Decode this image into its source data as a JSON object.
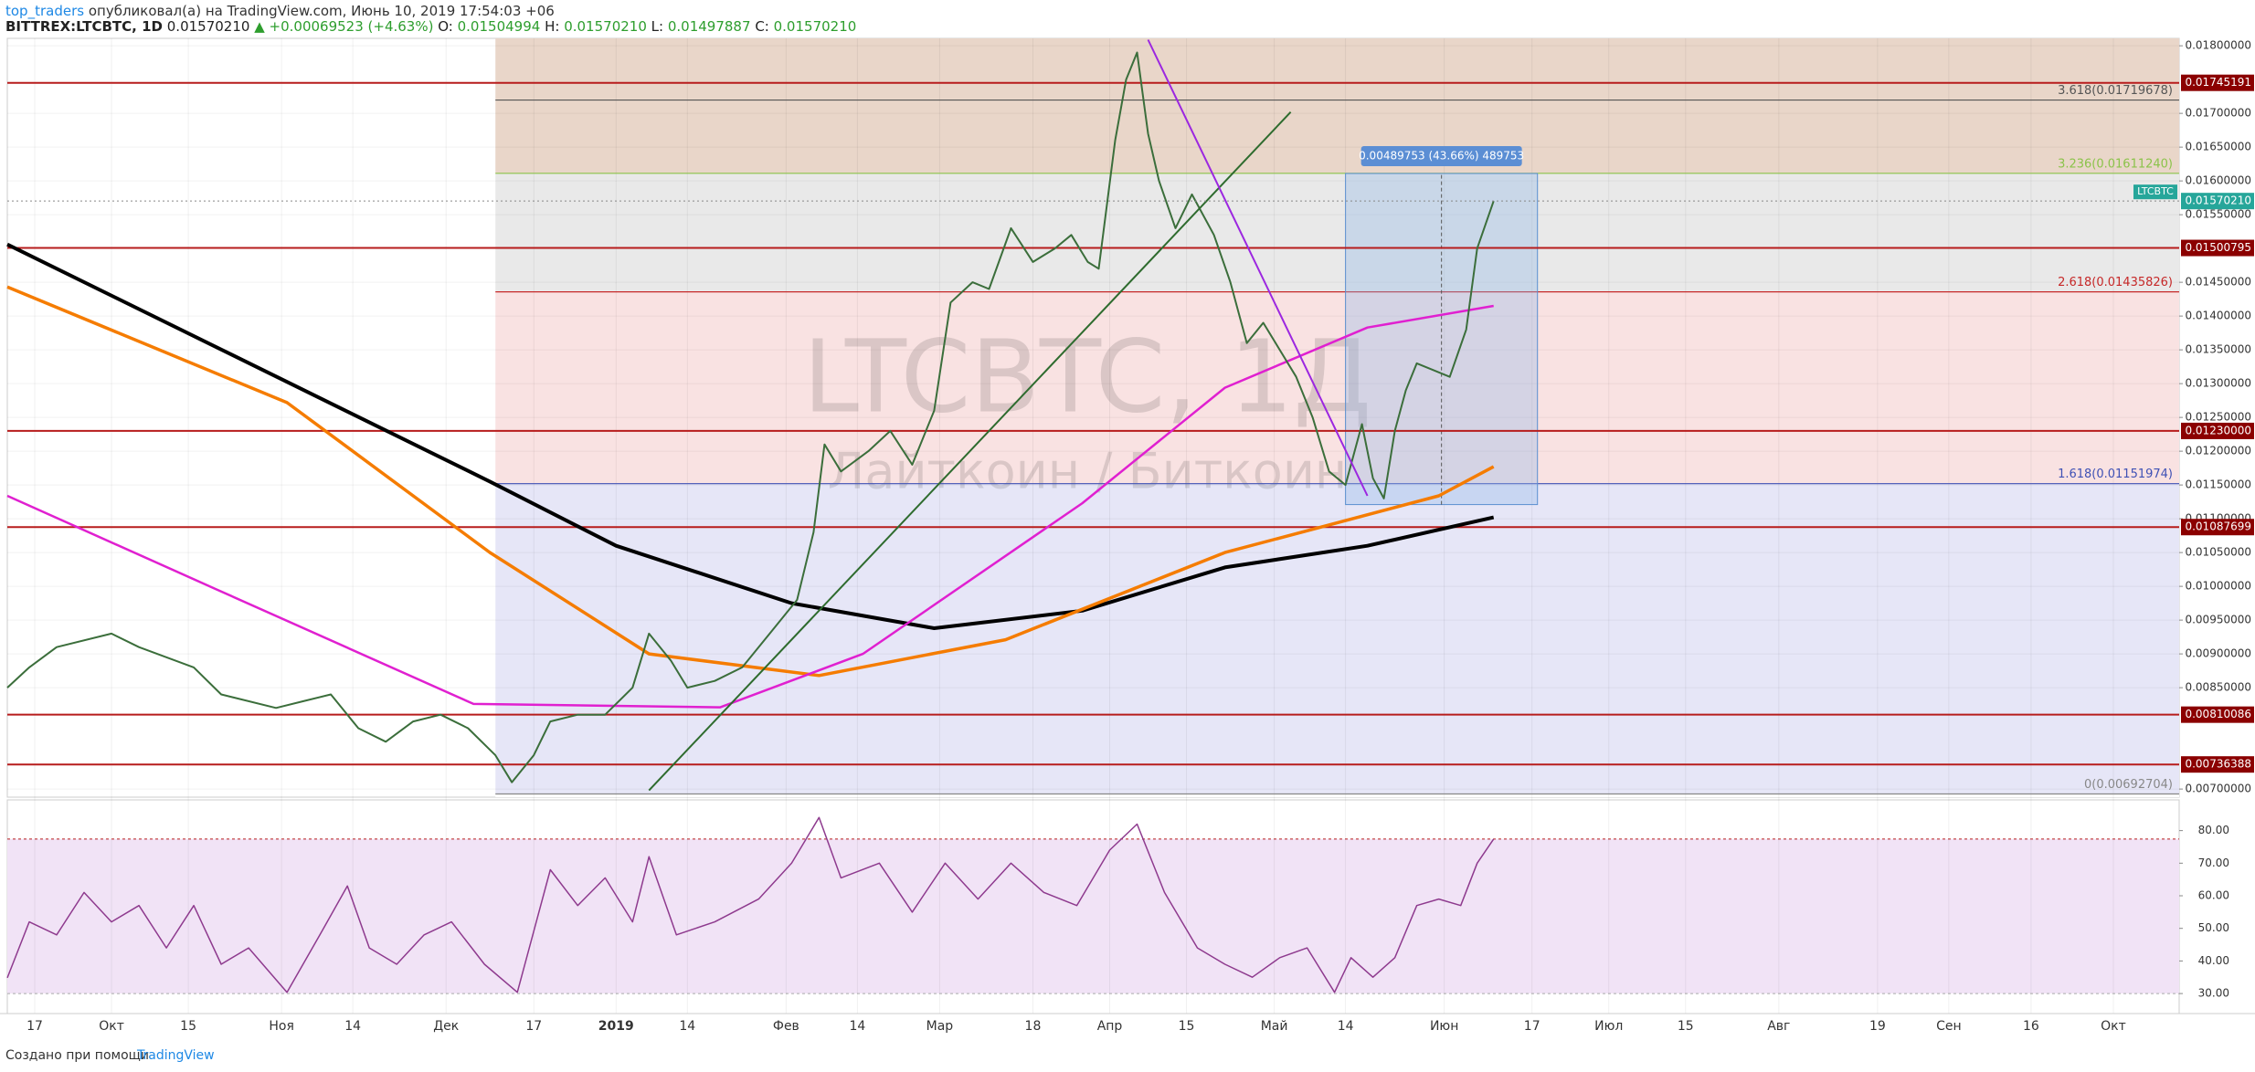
{
  "header": {
    "user": "top_traders",
    "published": "опубликовал(а) на TradingView.com, Июнь 10, 2019 17:54:03 +06",
    "symbol": "BITTREX:LTCBTC, 1D",
    "price": "0.01570210",
    "change": "▲ +0.00069523 (+4.63%)",
    "ohlc": [
      [
        "O:",
        "0.01504994"
      ],
      [
        "H:",
        "0.01570210"
      ],
      [
        "L:",
        "0.01497887"
      ],
      [
        "C:",
        "0.01570210"
      ]
    ]
  },
  "footer": {
    "text": "Создано при помощи",
    "brand": "TradingView"
  },
  "chart_data": [
    {
      "type": "line",
      "watermark": "LTCBTC, 1Д",
      "watermark_sub": "Лайткоин / Биткоин",
      "xlim": [
        11,
        407
      ],
      "ylim": [
        0.00688,
        0.01811
      ],
      "xticks": [
        {
          "value": 16,
          "label": "17"
        },
        {
          "value": 30,
          "label": "Окт"
        },
        {
          "value": 44,
          "label": "15"
        },
        {
          "value": 61,
          "label": "Ноя"
        },
        {
          "value": 74,
          "label": "14"
        },
        {
          "value": 91,
          "label": "Дек"
        },
        {
          "value": 107,
          "label": "17"
        },
        {
          "value": 122,
          "label": "2019"
        },
        {
          "value": 135,
          "label": "14"
        },
        {
          "value": 153,
          "label": "Фев"
        },
        {
          "value": 166,
          "label": "14"
        },
        {
          "value": 181,
          "label": "Мар"
        },
        {
          "value": 198,
          "label": "18"
        },
        {
          "value": 212,
          "label": "Апр"
        },
        {
          "value": 226,
          "label": "15"
        },
        {
          "value": 242,
          "label": "Май"
        },
        {
          "value": 255,
          "label": "14"
        },
        {
          "value": 273,
          "label": "Июн"
        },
        {
          "value": 289,
          "label": "17"
        },
        {
          "value": 303,
          "label": "Июл"
        },
        {
          "value": 317,
          "label": "15"
        },
        {
          "value": 334,
          "label": "Авг"
        },
        {
          "value": 352,
          "label": "19"
        },
        {
          "value": 365,
          "label": "Сен"
        },
        {
          "value": 380,
          "label": "16"
        },
        {
          "value": 395,
          "label": "Окт"
        }
      ],
      "yticks": [
        {
          "value": 0.018,
          "label": "0.01800000"
        },
        {
          "value": 0.017,
          "label": "0.01700000"
        },
        {
          "value": 0.0165,
          "label": "0.01650000"
        },
        {
          "value": 0.016,
          "label": "0.01600000"
        },
        {
          "value": 0.0155,
          "label": "0.01550000"
        },
        {
          "value": 0.0145,
          "label": "0.01450000"
        },
        {
          "value": 0.014,
          "label": "0.01400000"
        },
        {
          "value": 0.0135,
          "label": "0.01350000"
        },
        {
          "value": 0.013,
          "label": "0.01300000"
        },
        {
          "value": 0.0125,
          "label": "0.01250000"
        },
        {
          "value": 0.012,
          "label": "0.01200000"
        },
        {
          "value": 0.0115,
          "label": "0.01150000"
        },
        {
          "value": 0.011,
          "label": "0.01100000"
        },
        {
          "value": 0.0105,
          "label": "0.01050000"
        },
        {
          "value": 0.01,
          "label": "0.01000000"
        },
        {
          "value": 0.0095,
          "label": "0.00950000"
        },
        {
          "value": 0.009,
          "label": "0.00900000"
        },
        {
          "value": 0.0085,
          "label": "0.00850000"
        },
        {
          "value": 0.007,
          "label": "0.00700000"
        }
      ],
      "series": [
        {
          "color": "#000000",
          "width": 4,
          "x": [
            11,
            99,
            122,
            154,
            180,
            207,
            233,
            259,
            282
          ],
          "values": [
            0.01506,
            0.01155,
            0.0106,
            0.00975,
            0.00938,
            0.00964,
            0.01028,
            0.0106,
            0.01102
          ]
        },
        {
          "color": "#f57c00",
          "width": 3.5,
          "x": [
            11,
            62,
            99,
            128,
            159,
            193,
            233,
            272,
            282
          ],
          "values": [
            0.01443,
            0.01272,
            0.0105,
            0.009,
            0.00868,
            0.00921,
            0.0105,
            0.01134,
            0.01177
          ]
        },
        {
          "color": "#e020d0",
          "width": 2.5,
          "x": [
            11,
            49,
            96,
            141,
            167,
            207,
            233,
            259,
            282
          ],
          "values": [
            0.01134,
            0.00996,
            0.00826,
            0.00821,
            0.009,
            0.01123,
            0.01294,
            0.01383,
            0.01415
          ]
        },
        {
          "color": "#3b6e3b",
          "width": 2,
          "x": [
            11,
            15,
            20,
            30,
            35,
            45,
            50,
            60,
            65,
            70,
            75,
            80,
            85,
            90,
            95,
            100,
            103,
            107,
            110,
            115,
            120,
            125,
            128,
            132,
            135,
            140,
            145,
            150,
            155,
            158,
            160,
            163,
            168,
            172,
            176,
            180,
            183,
            187,
            190,
            194,
            198,
            202,
            205,
            208,
            210,
            213,
            215,
            217,
            219,
            221,
            224,
            227,
            231,
            234,
            237,
            240,
            243,
            246,
            249,
            252,
            255,
            258,
            260,
            262,
            264,
            266,
            268,
            271,
            274,
            277,
            279,
            282
          ],
          "values": [
            0.0085,
            0.0088,
            0.0091,
            0.0093,
            0.0091,
            0.0088,
            0.0084,
            0.0082,
            0.0083,
            0.0084,
            0.0079,
            0.0077,
            0.008,
            0.0081,
            0.0079,
            0.0075,
            0.0071,
            0.0075,
            0.008,
            0.0081,
            0.0081,
            0.0085,
            0.0093,
            0.0089,
            0.0085,
            0.0086,
            0.0088,
            0.0093,
            0.0098,
            0.0108,
            0.0121,
            0.0117,
            0.012,
            0.0123,
            0.0118,
            0.0126,
            0.0142,
            0.0145,
            0.0144,
            0.0153,
            0.0148,
            0.015,
            0.0152,
            0.0148,
            0.0147,
            0.0166,
            0.0175,
            0.0179,
            0.0167,
            0.016,
            0.0153,
            0.0158,
            0.0152,
            0.0145,
            0.0136,
            0.0139,
            0.0135,
            0.0131,
            0.0125,
            0.0117,
            0.0115,
            0.0124,
            0.0116,
            0.0113,
            0.0123,
            0.0129,
            0.0133,
            0.0132,
            0.0131,
            0.0138,
            0.015,
            0.0157021
          ]
        }
      ],
      "trendlines": [
        {
          "color": "#2e6b2e",
          "x": [
            128,
            245
          ],
          "values": [
            0.00698,
            0.01702
          ]
        },
        {
          "color": "#9c27e0",
          "x": [
            219,
            259
          ],
          "values": [
            0.01809,
            0.01134
          ]
        }
      ],
      "fib_start": 100,
      "fib": [
        {
          "value": 0.01719678,
          "label": "3.618(0.01719678)",
          "color": "#e9d6c9",
          "line": "#555555"
        },
        {
          "value": 0.0161124,
          "label": "3.236(0.01611240)",
          "color": "#e9e9e9",
          "line": "#8bc34a"
        },
        {
          "value": 0.01435826,
          "label": "2.618(0.01435826)",
          "color": "#f9e2e2",
          "line": "#c62828"
        },
        {
          "value": 0.01151974,
          "label": "1.618(0.01151974)",
          "color": "#e6e6f7",
          "line": "#3f51b5"
        },
        {
          "value": 0.00692704,
          "label": "0(0.00692704)",
          "color": "#ffffff",
          "line": "#888888"
        }
      ],
      "levels": [
        {
          "value": 0.01745191,
          "label": "0.01745191"
        },
        {
          "value": 0.01500795,
          "label": "0.01500795"
        },
        {
          "value": 0.0123,
          "label": "0.01230000"
        },
        {
          "value": 0.01087699,
          "label": "0.01087699"
        },
        {
          "value": 0.00810086,
          "label": "0.00810086"
        },
        {
          "value": 0.00736388,
          "label": "0.00736388"
        }
      ],
      "level_color": "#b71c1c",
      "last_price": {
        "value": 0.0157021,
        "label": "0.01570210"
      },
      "symbol_tag": "LTCBTC",
      "measure": {
        "label": "0.00489753 (43.66%) 489753",
        "x": [
          255,
          290
        ],
        "values": [
          0.01121,
          0.01611
        ]
      }
    },
    {
      "type": "line",
      "ylim": [
        26.1,
        88.3
      ],
      "yticks": [
        {
          "value": 80,
          "label": "80.00"
        },
        {
          "value": 70,
          "label": "70.00"
        },
        {
          "value": 60,
          "label": "60.00"
        },
        {
          "value": 50,
          "label": "50.00"
        },
        {
          "value": 40,
          "label": "40.00"
        },
        {
          "value": 30,
          "label": "30.00"
        }
      ],
      "band": [
        30,
        77.4
      ],
      "series": [
        {
          "color": "#8e3a8e",
          "width": 1.5,
          "x": [
            11,
            15,
            20,
            25,
            30,
            35,
            40,
            45,
            50,
            55,
            62,
            68,
            73,
            77,
            82,
            87,
            92,
            98,
            104,
            110,
            115,
            120,
            125,
            128,
            133,
            140,
            148,
            154,
            159,
            163,
            170,
            176,
            182,
            188,
            194,
            200,
            206,
            212,
            217,
            222,
            228,
            233,
            238,
            243,
            248,
            253,
            256,
            260,
            264,
            268,
            272,
            276,
            279,
            282
          ],
          "values": [
            34.8,
            52,
            48,
            61,
            52,
            57,
            44,
            57,
            39,
            44,
            30.4,
            48,
            63,
            44,
            39,
            48,
            52,
            39,
            30.4,
            68,
            57,
            65.5,
            52,
            72,
            48,
            52,
            59,
            70,
            84,
            65.5,
            70,
            55,
            70,
            59,
            70,
            61,
            57,
            74,
            82,
            61,
            44,
            39,
            35,
            41,
            44,
            30.4,
            41,
            35,
            41,
            57,
            59,
            57,
            70,
            77.4
          ]
        }
      ]
    }
  ]
}
